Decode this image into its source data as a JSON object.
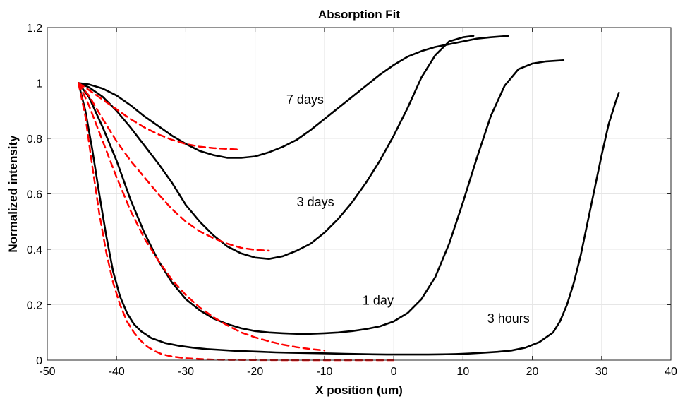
{
  "chart_data": {
    "type": "line",
    "title": "Absorption Fit",
    "xlabel": "X position (um)",
    "ylabel": "Normalized intensity",
    "xlim": [
      -50,
      40
    ],
    "ylim": [
      0,
      1.2
    ],
    "xticks": [
      -50,
      -40,
      -30,
      -20,
      -10,
      0,
      10,
      20,
      30,
      40
    ],
    "xtick_labels": [
      "-50",
      "-40",
      "-30",
      "-20",
      "-10",
      "0",
      "10",
      "20",
      "30",
      "40"
    ],
    "yticks": [
      0,
      0.2,
      0.4,
      0.6,
      0.8,
      1,
      1.2
    ],
    "ytick_labels": [
      "0",
      "0.2",
      "0.4",
      "0.6",
      "0.8",
      "1",
      "1.2"
    ],
    "grid": true,
    "colors": {
      "measured": "#000000",
      "fit": "#ff0000",
      "grid": "#e6e6e6",
      "axes": "#262626"
    },
    "series": [
      {
        "label": "7 days",
        "style": "solid",
        "x": [
          -45.5,
          -44,
          -42,
          -40,
          -38,
          -36,
          -34,
          -32,
          -30,
          -28,
          -26,
          -24,
          -22,
          -20,
          -18,
          -16,
          -14,
          -12,
          -10,
          -8,
          -6,
          -4,
          -2,
          0,
          2,
          4,
          6,
          8,
          10,
          12,
          14,
          16.5
        ],
        "y": [
          1.0,
          0.995,
          0.98,
          0.955,
          0.92,
          0.88,
          0.845,
          0.81,
          0.78,
          0.755,
          0.74,
          0.73,
          0.73,
          0.735,
          0.75,
          0.77,
          0.795,
          0.83,
          0.87,
          0.91,
          0.95,
          0.99,
          1.03,
          1.065,
          1.095,
          1.115,
          1.13,
          1.14,
          1.15,
          1.16,
          1.165,
          1.17
        ]
      },
      {
        "label": "3 days",
        "style": "solid",
        "x": [
          -45.5,
          -44,
          -42,
          -40,
          -38,
          -36,
          -34,
          -32,
          -30,
          -28,
          -26,
          -24,
          -22,
          -20,
          -18,
          -16,
          -14,
          -12,
          -10,
          -8,
          -6,
          -4,
          -2,
          0,
          2,
          4,
          6,
          8,
          10,
          11.5
        ],
        "y": [
          1.0,
          0.985,
          0.95,
          0.9,
          0.84,
          0.775,
          0.71,
          0.64,
          0.56,
          0.5,
          0.45,
          0.41,
          0.385,
          0.37,
          0.365,
          0.375,
          0.395,
          0.42,
          0.46,
          0.51,
          0.57,
          0.64,
          0.72,
          0.81,
          0.91,
          1.02,
          1.1,
          1.15,
          1.165,
          1.17
        ]
      },
      {
        "label": "1 day",
        "style": "solid",
        "x": [
          -45.5,
          -44,
          -42,
          -40,
          -38,
          -36,
          -34,
          -32,
          -30,
          -28,
          -26,
          -24,
          -22,
          -20,
          -18,
          -16,
          -14,
          -12,
          -10,
          -8,
          -6,
          -4,
          -2,
          0,
          2,
          4,
          6,
          8,
          10,
          12,
          14,
          16,
          18,
          20,
          22,
          24.5
        ],
        "y": [
          1.0,
          0.95,
          0.84,
          0.72,
          0.58,
          0.46,
          0.36,
          0.28,
          0.22,
          0.18,
          0.15,
          0.13,
          0.115,
          0.105,
          0.1,
          0.097,
          0.095,
          0.095,
          0.097,
          0.1,
          0.105,
          0.112,
          0.122,
          0.14,
          0.17,
          0.22,
          0.3,
          0.42,
          0.57,
          0.73,
          0.88,
          0.99,
          1.05,
          1.07,
          1.078,
          1.082
        ]
      },
      {
        "label": "3 hours",
        "style": "solid",
        "x": [
          -45.5,
          -44.5,
          -43.5,
          -42.5,
          -41.5,
          -40.5,
          -39.5,
          -38.5,
          -37.5,
          -36.5,
          -35,
          -33,
          -31,
          -29,
          -27,
          -25,
          -23,
          -21,
          -19,
          -17,
          -15,
          -13,
          -11,
          -9,
          -7,
          -5,
          -3,
          -1,
          1,
          3,
          5,
          7,
          9,
          11,
          13,
          15,
          17,
          19,
          21,
          23,
          24,
          25,
          26,
          27,
          28,
          29,
          30,
          31,
          32,
          32.5
        ],
        "y": [
          1.0,
          0.9,
          0.76,
          0.6,
          0.45,
          0.32,
          0.23,
          0.17,
          0.13,
          0.105,
          0.08,
          0.062,
          0.052,
          0.045,
          0.04,
          0.037,
          0.034,
          0.032,
          0.03,
          0.028,
          0.027,
          0.026,
          0.025,
          0.024,
          0.023,
          0.022,
          0.021,
          0.02,
          0.02,
          0.02,
          0.02,
          0.021,
          0.022,
          0.024,
          0.027,
          0.03,
          0.035,
          0.045,
          0.065,
          0.1,
          0.14,
          0.2,
          0.28,
          0.38,
          0.5,
          0.62,
          0.74,
          0.85,
          0.93,
          0.965
        ]
      },
      {
        "style": "dashed",
        "x": [
          -45.5,
          -44,
          -42,
          -40,
          -38,
          -36,
          -34,
          -32,
          -30,
          -28,
          -26,
          -24,
          -22.5
        ],
        "y": [
          1.0,
          0.975,
          0.94,
          0.905,
          0.87,
          0.84,
          0.815,
          0.795,
          0.78,
          0.77,
          0.765,
          0.762,
          0.76
        ]
      },
      {
        "style": "dashed",
        "x": [
          -45.5,
          -44,
          -42,
          -40,
          -38,
          -36,
          -34,
          -32,
          -30,
          -28,
          -26,
          -24,
          -22,
          -20,
          -18
        ],
        "y": [
          1.0,
          0.955,
          0.87,
          0.79,
          0.72,
          0.66,
          0.6,
          0.545,
          0.5,
          0.465,
          0.44,
          0.42,
          0.405,
          0.398,
          0.395
        ]
      },
      {
        "style": "dashed",
        "x": [
          -45.5,
          -44,
          -42,
          -40,
          -38,
          -36,
          -34,
          -32,
          -30,
          -28,
          -26,
          -24,
          -22,
          -20,
          -18,
          -16,
          -14,
          -12,
          -10
        ],
        "y": [
          1.0,
          0.92,
          0.79,
          0.66,
          0.54,
          0.44,
          0.36,
          0.29,
          0.235,
          0.19,
          0.155,
          0.125,
          0.1,
          0.082,
          0.068,
          0.056,
          0.047,
          0.04,
          0.035
        ]
      },
      {
        "style": "dashed",
        "x": [
          -45.5,
          -44.5,
          -43.5,
          -42.5,
          -41.5,
          -40.5,
          -39.5,
          -38.5,
          -37.5,
          -36.5,
          -35.5,
          -34.5,
          -33.5,
          -32,
          -30,
          -28,
          -26,
          -24,
          -20,
          -15,
          -10,
          -5,
          0
        ],
        "y": [
          1.0,
          0.88,
          0.7,
          0.53,
          0.39,
          0.28,
          0.2,
          0.14,
          0.1,
          0.07,
          0.048,
          0.033,
          0.022,
          0.013,
          0.007,
          0.004,
          0.002,
          0.001,
          0.0005,
          0.0,
          0.0,
          0.0,
          0.0
        ]
      }
    ],
    "annotations": [
      {
        "text": "7 days",
        "x": -15.5,
        "y": 0.925
      },
      {
        "text": "3 days",
        "x": -14,
        "y": 0.555
      },
      {
        "text": "1 day",
        "x": -4.5,
        "y": 0.2
      },
      {
        "text": "3 hours",
        "x": 13.5,
        "y": 0.135
      }
    ]
  }
}
